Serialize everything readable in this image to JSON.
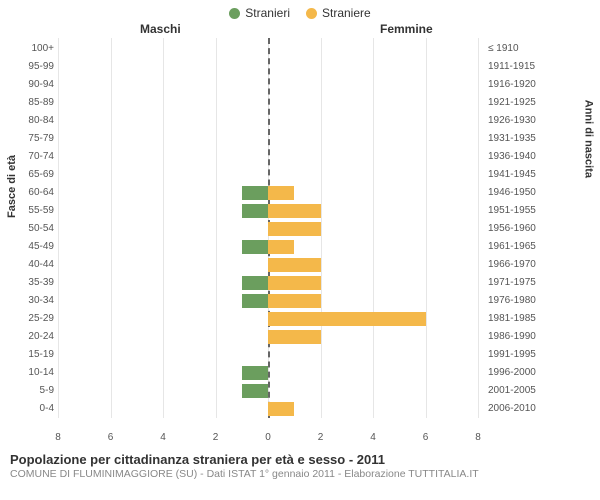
{
  "legend": {
    "series1": {
      "label": "Stranieri",
      "color": "#6b9e5e"
    },
    "series2": {
      "label": "Straniere",
      "color": "#f4b84a"
    }
  },
  "headers": {
    "left": "Maschi",
    "right": "Femmine"
  },
  "axis": {
    "left_title": "Fasce di età",
    "right_title": "Anni di nascita",
    "x_max": 8,
    "x_ticks": [
      8,
      6,
      4,
      2,
      0,
      2,
      4,
      6,
      8
    ],
    "background_color": "#ffffff",
    "grid_color": "#e6e6e6",
    "center_line_color": "#666666",
    "label_fontsize": 10,
    "title_fontsize": 11
  },
  "rows": [
    {
      "age": "100+",
      "birth": "≤ 1910",
      "m": 0,
      "f": 0
    },
    {
      "age": "95-99",
      "birth": "1911-1915",
      "m": 0,
      "f": 0
    },
    {
      "age": "90-94",
      "birth": "1916-1920",
      "m": 0,
      "f": 0
    },
    {
      "age": "85-89",
      "birth": "1921-1925",
      "m": 0,
      "f": 0
    },
    {
      "age": "80-84",
      "birth": "1926-1930",
      "m": 0,
      "f": 0
    },
    {
      "age": "75-79",
      "birth": "1931-1935",
      "m": 0,
      "f": 0
    },
    {
      "age": "70-74",
      "birth": "1936-1940",
      "m": 0,
      "f": 0
    },
    {
      "age": "65-69",
      "birth": "1941-1945",
      "m": 0,
      "f": 0
    },
    {
      "age": "60-64",
      "birth": "1946-1950",
      "m": 1,
      "f": 1
    },
    {
      "age": "55-59",
      "birth": "1951-1955",
      "m": 1,
      "f": 2
    },
    {
      "age": "50-54",
      "birth": "1956-1960",
      "m": 0,
      "f": 2
    },
    {
      "age": "45-49",
      "birth": "1961-1965",
      "m": 1,
      "f": 1
    },
    {
      "age": "40-44",
      "birth": "1966-1970",
      "m": 0,
      "f": 2
    },
    {
      "age": "35-39",
      "birth": "1971-1975",
      "m": 1,
      "f": 2
    },
    {
      "age": "30-34",
      "birth": "1976-1980",
      "m": 1,
      "f": 2
    },
    {
      "age": "25-29",
      "birth": "1981-1985",
      "m": 0,
      "f": 6
    },
    {
      "age": "20-24",
      "birth": "1986-1990",
      "m": 0,
      "f": 2
    },
    {
      "age": "15-19",
      "birth": "1991-1995",
      "m": 0,
      "f": 0
    },
    {
      "age": "10-14",
      "birth": "1996-2000",
      "m": 1,
      "f": 0
    },
    {
      "age": "5-9",
      "birth": "2001-2005",
      "m": 1,
      "f": 0
    },
    {
      "age": "0-4",
      "birth": "2006-2010",
      "m": 0,
      "f": 1
    }
  ],
  "footer": {
    "title": "Popolazione per cittadinanza straniera per età e sesso - 2011",
    "subtitle": "COMUNE DI FLUMINIMAGGIORE (SU) - Dati ISTAT 1° gennaio 2011 - Elaborazione TUTTITALIA.IT"
  }
}
